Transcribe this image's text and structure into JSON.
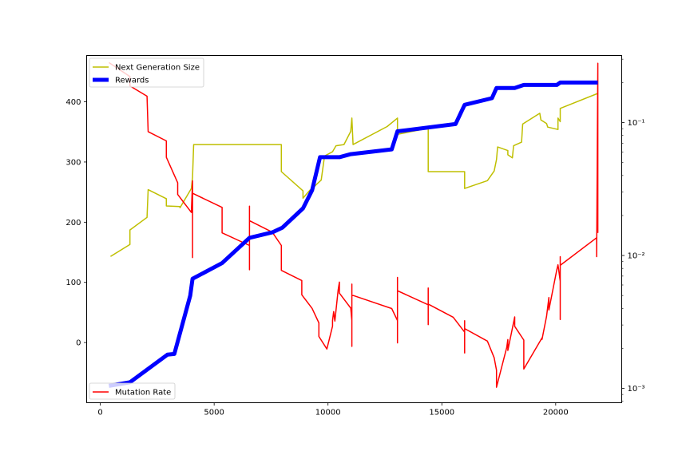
{
  "chart_data": {
    "type": "line",
    "x_ticks": [
      0,
      5000,
      10000,
      15000,
      20000
    ],
    "x_tick_labels": [
      "0",
      "5000",
      "10000",
      "15000",
      "20000"
    ],
    "xlim": [
      -600,
      22900
    ],
    "y_left": {
      "ticks": [
        0,
        100,
        200,
        300,
        400
      ],
      "tick_labels": [
        "0",
        "100",
        "200",
        "300",
        "400"
      ],
      "ylim": [
        -100,
        477
      ]
    },
    "y_right": {
      "scale": "log",
      "ticks": [
        0.001,
        0.01,
        0.1
      ],
      "tick_labels": [
        "10⁻³",
        "10⁻²",
        "10⁻¹"
      ],
      "ylim": [
        0.00078,
        0.32
      ]
    },
    "grid": false,
    "legend_left": {
      "placement": "top-left",
      "entries": [
        "Next Generation Size",
        "Rewards"
      ]
    },
    "legend_right": {
      "placement": "bottom-left",
      "entries": [
        "Mutation Rate"
      ]
    },
    "series": [
      {
        "name": "Next Generation Size",
        "axis": "left",
        "color": "#bfbf00",
        "width": 1.5,
        "points": [
          [
            450,
            143
          ],
          [
            1300,
            163
          ],
          [
            1300,
            187
          ],
          [
            2050,
            208
          ],
          [
            2100,
            254
          ],
          [
            2900,
            239
          ],
          [
            2900,
            227
          ],
          [
            3500,
            226
          ],
          [
            3500,
            224
          ],
          [
            4000,
            256
          ],
          [
            4050,
            275
          ],
          [
            4100,
            329
          ],
          [
            7950,
            329
          ],
          [
            7950,
            284
          ],
          [
            8900,
            252
          ],
          [
            8900,
            240
          ],
          [
            9200,
            253
          ],
          [
            9350,
            257
          ],
          [
            9500,
            263
          ],
          [
            9700,
            270
          ],
          [
            9850,
            310
          ],
          [
            10200,
            317
          ],
          [
            10350,
            327
          ],
          [
            10700,
            329
          ],
          [
            11000,
            351
          ],
          [
            11050,
            373
          ],
          [
            11100,
            329
          ],
          [
            12600,
            359
          ],
          [
            13050,
            373
          ],
          [
            13050,
            346
          ],
          [
            14400,
            356
          ],
          [
            14400,
            284
          ],
          [
            16000,
            284
          ],
          [
            16000,
            256
          ],
          [
            17000,
            269
          ],
          [
            17300,
            285
          ],
          [
            17400,
            304
          ],
          [
            17450,
            325
          ],
          [
            17900,
            319
          ],
          [
            17900,
            312
          ],
          [
            18100,
            307
          ],
          [
            18150,
            327
          ],
          [
            18500,
            333
          ],
          [
            18550,
            363
          ],
          [
            19300,
            381
          ],
          [
            19350,
            370
          ],
          [
            19600,
            364
          ],
          [
            19650,
            358
          ],
          [
            20100,
            354
          ],
          [
            20100,
            373
          ],
          [
            20200,
            367
          ],
          [
            20200,
            389
          ],
          [
            21850,
            414
          ]
        ]
      },
      {
        "name": "Rewards",
        "axis": "left",
        "color": "#0000ff",
        "width": 5,
        "points": [
          [
            380,
            -72
          ],
          [
            1300,
            -66
          ],
          [
            2950,
            -20
          ],
          [
            3250,
            -19
          ],
          [
            3950,
            78
          ],
          [
            4050,
            106
          ],
          [
            5350,
            132
          ],
          [
            6550,
            174
          ],
          [
            7550,
            183
          ],
          [
            8000,
            191
          ],
          [
            8900,
            223
          ],
          [
            9300,
            253
          ],
          [
            9650,
            308
          ],
          [
            10500,
            308
          ],
          [
            11000,
            313
          ],
          [
            12800,
            321
          ],
          [
            13050,
            351
          ],
          [
            15600,
            363
          ],
          [
            16000,
            395
          ],
          [
            17200,
            406
          ],
          [
            17400,
            423
          ],
          [
            18200,
            423
          ],
          [
            18600,
            428
          ],
          [
            20050,
            428
          ],
          [
            20200,
            432
          ],
          [
            21850,
            432
          ]
        ]
      },
      {
        "name": "Mutation Rate",
        "axis": "right",
        "color": "#ff0000",
        "width": 1.5,
        "points": [
          [
            380,
            0.283
          ],
          [
            1300,
            0.222
          ],
          [
            1300,
            0.189
          ],
          [
            2050,
            0.158
          ],
          [
            2100,
            0.0855
          ],
          [
            2900,
            0.0728
          ],
          [
            2900,
            0.0548
          ],
          [
            3400,
            0.0353
          ],
          [
            3400,
            0.0288
          ],
          [
            4000,
            0.0211
          ],
          [
            4050,
            0.0365
          ],
          [
            4050,
            0.00966
          ],
          [
            4050,
            0.0294
          ],
          [
            5350,
            0.023
          ],
          [
            5350,
            0.0148
          ],
          [
            6550,
            0.0119
          ],
          [
            6550,
            0.00781
          ],
          [
            6550,
            0.0235
          ],
          [
            6550,
            0.0183
          ],
          [
            7550,
            0.015
          ],
          [
            7950,
            0.0119
          ],
          [
            7950,
            0.00773
          ],
          [
            8850,
            0.00648
          ],
          [
            8850,
            0.00506
          ],
          [
            9300,
            0.004
          ],
          [
            9600,
            0.00311
          ],
          [
            9600,
            0.00246
          ],
          [
            9950,
            0.00198
          ],
          [
            10200,
            0.00294
          ],
          [
            10200,
            0.00324
          ],
          [
            10250,
            0.00378
          ],
          [
            10300,
            0.00321
          ],
          [
            10450,
            0.00555
          ],
          [
            10500,
            0.00631
          ],
          [
            10500,
            0.00521
          ],
          [
            11000,
            0.00402
          ],
          [
            11050,
            0.00324
          ],
          [
            11050,
            0.00207
          ],
          [
            11050,
            0.00609
          ],
          [
            11050,
            0.00504
          ],
          [
            12800,
            0.00399
          ],
          [
            13050,
            0.00324
          ],
          [
            13050,
            0.0022
          ],
          [
            13050,
            0.00684
          ],
          [
            13050,
            0.00543
          ],
          [
            14400,
            0.00426
          ],
          [
            14400,
            0.00302
          ],
          [
            14400,
            0.0057
          ],
          [
            14400,
            0.00431
          ],
          [
            15500,
            0.00343
          ],
          [
            16000,
            0.00265
          ],
          [
            16000,
            0.00185
          ],
          [
            16000,
            0.00323
          ],
          [
            16000,
            0.00282
          ],
          [
            17000,
            0.00227
          ],
          [
            17300,
            0.0017
          ],
          [
            17400,
            0.00137
          ],
          [
            17400,
            0.00102
          ],
          [
            17850,
            0.00203
          ],
          [
            17900,
            0.00233
          ],
          [
            17900,
            0.00193
          ],
          [
            18200,
            0.00345
          ],
          [
            18200,
            0.00293
          ],
          [
            18600,
            0.00231
          ],
          [
            18600,
            0.0014
          ],
          [
            19400,
            0.0024
          ],
          [
            19400,
            0.00234
          ],
          [
            19600,
            0.00349
          ],
          [
            19700,
            0.00483
          ],
          [
            19700,
            0.00389
          ],
          [
            20050,
            0.0078
          ],
          [
            20100,
            0.00851
          ],
          [
            20200,
            0.00641
          ],
          [
            20200,
            0.0033
          ],
          [
            20200,
            0.0098
          ],
          [
            20200,
            0.00843
          ],
          [
            21800,
            0.0136
          ],
          [
            21800,
            0.0098
          ],
          [
            21850,
            0.28
          ],
          [
            21850,
            0.0148
          ]
        ]
      }
    ]
  }
}
